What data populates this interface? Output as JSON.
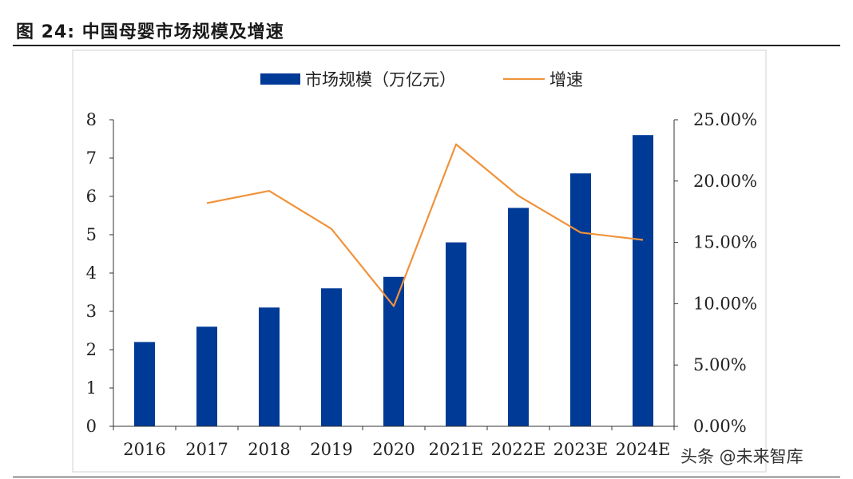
{
  "figure_title": "图 24: 中国母婴市场规模及增速",
  "watermark": "头条 @未来智库",
  "colors": {
    "bar": "#003a97",
    "line": "#f0923a",
    "axis": "#333333",
    "frame": "#d0d0d0"
  },
  "chart_data": {
    "type": "bar",
    "categories": [
      "2016",
      "2017",
      "2018",
      "2019",
      "2020",
      "2021E",
      "2022E",
      "2023E",
      "2024E"
    ],
    "series": [
      {
        "name": "市场规模（万亿元）",
        "type": "bar",
        "axis": "left",
        "values": [
          2.2,
          2.6,
          3.1,
          3.6,
          3.9,
          4.8,
          5.7,
          6.6,
          7.6
        ]
      },
      {
        "name": "增速",
        "type": "line",
        "axis": "right",
        "values": [
          null,
          0.182,
          0.192,
          0.161,
          0.098,
          0.23,
          0.188,
          0.158,
          0.152
        ]
      }
    ],
    "ylim_left": [
      0,
      8
    ],
    "yticks_left": [
      "0",
      "1",
      "2",
      "3",
      "4",
      "5",
      "6",
      "7",
      "8"
    ],
    "ylim_right": [
      0,
      0.25
    ],
    "yticks_right": [
      "0.00%",
      "5.00%",
      "10.00%",
      "15.00%",
      "20.00%",
      "25.00%"
    ],
    "legend_position": "top-center",
    "grid": false
  }
}
